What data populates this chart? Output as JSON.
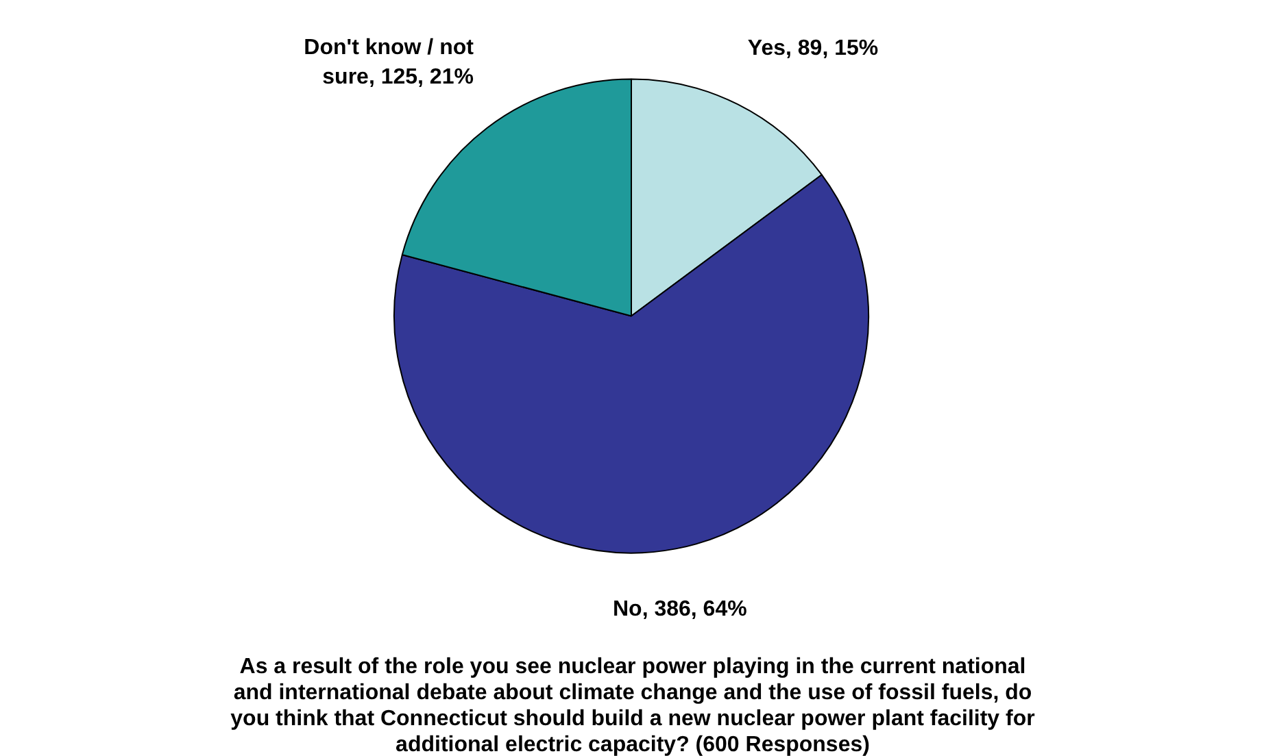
{
  "chart_data": {
    "type": "pie",
    "title": "As a result of the role you see nuclear power playing in the current national\nand international debate about climate change and the use of fossil fuels, do\nyou think that Connecticut should build a new nuclear power plant facility for\nadditional electric capacity? (600 Responses)",
    "categories": [
      "Yes",
      "No",
      "Don't know / not sure"
    ],
    "values": [
      89,
      386,
      125
    ],
    "colors": [
      "#b9e1e4",
      "#333795",
      "#1f9a9a"
    ],
    "value_labels": [
      "89, 15%",
      "386, 64%",
      "125, 21%"
    ],
    "legend": false
  }
}
